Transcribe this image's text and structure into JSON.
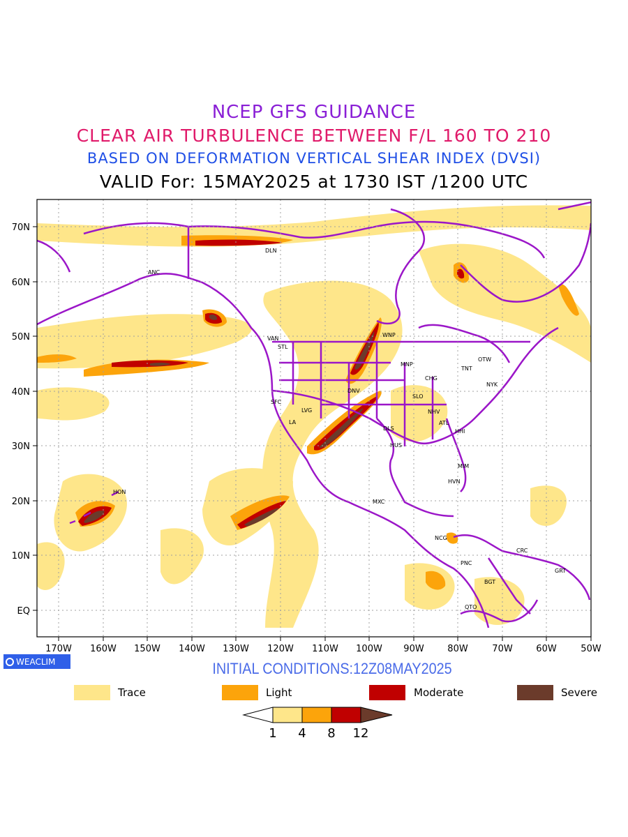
{
  "titles": {
    "line1": "NCEP GFS GUIDANCE",
    "line2": "CLEAR AIR TURBULENCE BETWEEN F/L 160 TO 210",
    "line3": "BASED ON DEFORMATION VERTICAL SHEAR INDEX (DVSI)",
    "line4": "VALID For: 15MAY2025 at 1730 IST /1200 UTC"
  },
  "colors": {
    "trace": "#fee68a",
    "light": "#fca40b",
    "moderate": "#c00000",
    "severe": "#6b3b2b",
    "boundaries": "#9b16c8"
  },
  "axes": {
    "lat_labels": [
      "70N",
      "60N",
      "50N",
      "40N",
      "30N",
      "20N",
      "10N",
      "EQ"
    ],
    "lon_labels": [
      "170W",
      "160W",
      "150W",
      "140W",
      "130W",
      "120W",
      "110W",
      "100W",
      "90W",
      "80W",
      "70W",
      "60W",
      "50W"
    ]
  },
  "cities": [
    {
      "name": "ANC"
    },
    {
      "name": "DLN"
    },
    {
      "name": "VAN"
    },
    {
      "name": "STL"
    },
    {
      "name": "WNP"
    },
    {
      "name": "MNP"
    },
    {
      "name": "TNT"
    },
    {
      "name": "OTW"
    },
    {
      "name": "CHG"
    },
    {
      "name": "NYK"
    },
    {
      "name": "DNV"
    },
    {
      "name": "SFC"
    },
    {
      "name": "LVG"
    },
    {
      "name": "LA"
    },
    {
      "name": "SLO"
    },
    {
      "name": "NHV"
    },
    {
      "name": "ATL"
    },
    {
      "name": "DLS"
    },
    {
      "name": "HHI"
    },
    {
      "name": "HUS"
    },
    {
      "name": "MIM"
    },
    {
      "name": "HVN"
    },
    {
      "name": "MXC"
    },
    {
      "name": "HON"
    },
    {
      "name": "NCG"
    },
    {
      "name": "PNC"
    },
    {
      "name": "CRC"
    },
    {
      "name": "GRT"
    },
    {
      "name": "BGT"
    },
    {
      "name": "QTO"
    }
  ],
  "logo": "WEACLIM",
  "initial_conditions": "INITIAL CONDITIONS:12Z08MAY2025",
  "legend": [
    {
      "label": "Trace",
      "color": "#fee68a"
    },
    {
      "label": "Light",
      "color": "#fca40b"
    },
    {
      "label": "Moderate",
      "color": "#c00000"
    },
    {
      "label": "Severe",
      "color": "#6b3b2b"
    }
  ],
  "colorbar": {
    "ticks": [
      "1",
      "4",
      "8",
      "12"
    ]
  }
}
